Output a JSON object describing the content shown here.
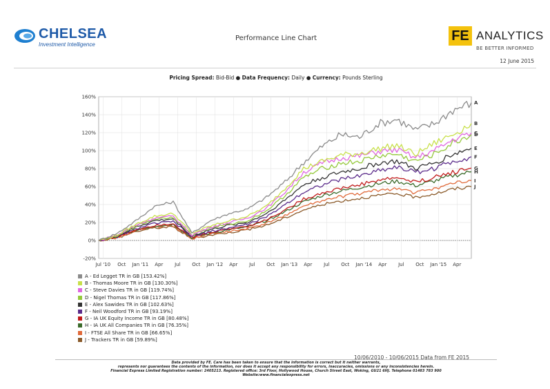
{
  "header": {
    "brand_left_name": "CHELSEA",
    "brand_left_tagline": "Investment Intelligence",
    "title": "Performance Line Chart",
    "brand_right_mark": "FE",
    "brand_right_word": "ANALYTICS",
    "brand_right_slogan": "BE BETTER INFORMED",
    "date": "12 June 2015"
  },
  "meta": {
    "pricing_label": "Pricing Spread:",
    "pricing_value": "Bid-Bid",
    "frequency_label": "Data Frequency:",
    "frequency_value": "Daily",
    "currency_label": "Currency:",
    "currency_value": "Pounds Sterling"
  },
  "chart_data": {
    "type": "line",
    "title": "",
    "xlabel": "",
    "ylabel": "",
    "x_range": [
      "2010-06-10",
      "2015-06-10"
    ],
    "y_range": [
      -20,
      160
    ],
    "y_ticks": [
      "-20%",
      "0%",
      "20%",
      "40%",
      "60%",
      "80%",
      "100%",
      "120%",
      "140%",
      "160%"
    ],
    "x_ticks": [
      "Jul '10",
      "Oct",
      "Jan '11",
      "Apr",
      "Jul",
      "Oct",
      "Jan '12",
      "Apr",
      "Jul",
      "Oct",
      "Jan '13",
      "Apr",
      "Jul",
      "Oct",
      "Jan '14",
      "Apr",
      "Jul",
      "Oct",
      "Jan '15",
      "Apr"
    ],
    "grid": true,
    "legend_position": "bottom-left",
    "x_months": [
      0,
      3,
      6,
      9,
      12,
      15,
      18,
      21,
      24,
      27,
      30,
      33,
      36,
      39,
      42,
      45,
      48,
      51,
      54,
      57,
      60
    ],
    "series": [
      {
        "name": "A - Ed Legget TR in GB [153.42%]",
        "code": "A",
        "color": "#8a8a8a",
        "values": [
          0,
          8,
          22,
          38,
          43,
          8,
          22,
          30,
          35,
          48,
          65,
          87,
          105,
          118,
          115,
          130,
          135,
          123,
          130,
          145,
          153.4
        ]
      },
      {
        "name": "B - Thomas Moore TR in GB [130.30%]",
        "code": "B",
        "color": "#c8e04a",
        "values": [
          0,
          6,
          18,
          27,
          30,
          8,
          16,
          22,
          27,
          38,
          58,
          80,
          88,
          95,
          97,
          102,
          106,
          96,
          108,
          118,
          130.3
        ]
      },
      {
        "name": "C - Steve Davies TR in GB [119.74%]",
        "code": "C",
        "color": "#e066e0",
        "values": [
          0,
          6,
          17,
          25,
          27,
          6,
          15,
          20,
          25,
          36,
          54,
          76,
          86,
          92,
          94,
          99,
          101,
          92,
          100,
          112,
          119.7
        ]
      },
      {
        "name": "D - Nigel Thomas TR in GB [117.86%]",
        "code": "D",
        "color": "#94c83a",
        "values": [
          0,
          5,
          16,
          24,
          26,
          6,
          14,
          18,
          22,
          33,
          50,
          70,
          80,
          86,
          88,
          94,
          96,
          88,
          96,
          108,
          117.9
        ]
      },
      {
        "name": "E - Alex Sawides TR in GB [102.63%]",
        "code": "E",
        "color": "#333333",
        "values": [
          0,
          5,
          15,
          22,
          24,
          5,
          12,
          17,
          20,
          30,
          45,
          62,
          70,
          76,
          80,
          86,
          88,
          80,
          86,
          96,
          102.6
        ]
      },
      {
        "name": "F - Neil Woodford TR in GB [93.19%]",
        "code": "F",
        "color": "#5a2a8a",
        "values": [
          0,
          4,
          13,
          19,
          21,
          4,
          10,
          14,
          18,
          26,
          40,
          54,
          62,
          68,
          72,
          78,
          82,
          76,
          80,
          88,
          93.2
        ]
      },
      {
        "name": "G - IA UK Equity Income TR in GB [80.48%]",
        "code": "G",
        "color": "#c01818",
        "values": [
          0,
          4,
          12,
          17,
          19,
          3,
          9,
          13,
          16,
          23,
          34,
          46,
          53,
          58,
          62,
          67,
          70,
          65,
          70,
          76,
          80.5
        ]
      },
      {
        "name": "H - IA UK All Companies TR in GB [76.35%]",
        "code": "H",
        "color": "#3a6a2a",
        "values": [
          0,
          4,
          12,
          16,
          18,
          3,
          8,
          12,
          15,
          22,
          32,
          43,
          50,
          55,
          59,
          63,
          66,
          61,
          66,
          72,
          76.4
        ]
      },
      {
        "name": "I - FTSE All Share TR in GB [66.65%]",
        "code": "I",
        "color": "#e06a3a",
        "values": [
          0,
          3,
          11,
          15,
          16,
          2,
          7,
          10,
          13,
          19,
          28,
          38,
          44,
          49,
          52,
          56,
          58,
          53,
          58,
          63,
          66.7
        ]
      },
      {
        "name": "J - Trackers TR in GB [59.89%]",
        "code": "J",
        "color": "#8a5a2a",
        "values": [
          0,
          3,
          10,
          14,
          15,
          2,
          6,
          9,
          12,
          17,
          25,
          34,
          40,
          44,
          47,
          50,
          52,
          48,
          52,
          57,
          59.9
        ]
      }
    ]
  },
  "footer": {
    "date_range": "10/06/2010 - 10/06/2015 Data from FE 2015",
    "disclaimer_1": "Data provided by FE. Care has been taken to ensure that the information is correct but it neither warrants,",
    "disclaimer_2": "represents nor guarantees the contents of the information, nor does it accept any responsibility for errors, inaccuracies, omissions or any inconsistencies herein.",
    "disclaimer_3": "Financial Express Limited Registration number: 2405213. Registered office: 3rd Floor, Hollywood House, Church Street East, Woking, GU21 6HJ. Telephone 01483 783 900",
    "disclaimer_4": "Website:www.financialexpress.net"
  }
}
